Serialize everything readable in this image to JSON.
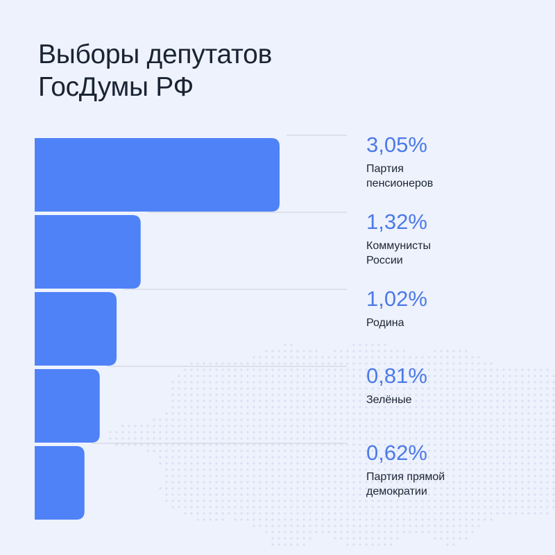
{
  "title": {
    "line1": "Выборы депутатов",
    "line2": "ГосДумы РФ"
  },
  "colors": {
    "background": "#eef2fd",
    "bar": "#4f82f7",
    "value_text": "#4c7ae6",
    "label_text": "#1a2433",
    "guide_line": "#c9cfdb",
    "map_dots": "#d9e0f1"
  },
  "chart_data": {
    "type": "bar",
    "orientation": "horizontal",
    "title": "Выборы депутатов ГосДумы РФ",
    "unit": "%",
    "categories": [
      "Партия пенсионеров",
      "Коммунисты России",
      "Родина",
      "Зелёные",
      "Партия прямой демократии"
    ],
    "category_lines": [
      [
        "Партия",
        "пенсионеров"
      ],
      [
        "Коммунисты",
        "России"
      ],
      [
        "Родина"
      ],
      [
        "Зелёные"
      ],
      [
        "Партия прямой",
        "демократии"
      ]
    ],
    "values": [
      3.05,
      1.32,
      1.02,
      0.81,
      0.62
    ],
    "value_labels": [
      "3,05%",
      "1,32%",
      "1,02%",
      "0,81%",
      "0,62%"
    ],
    "grid": false,
    "legend": "none"
  }
}
